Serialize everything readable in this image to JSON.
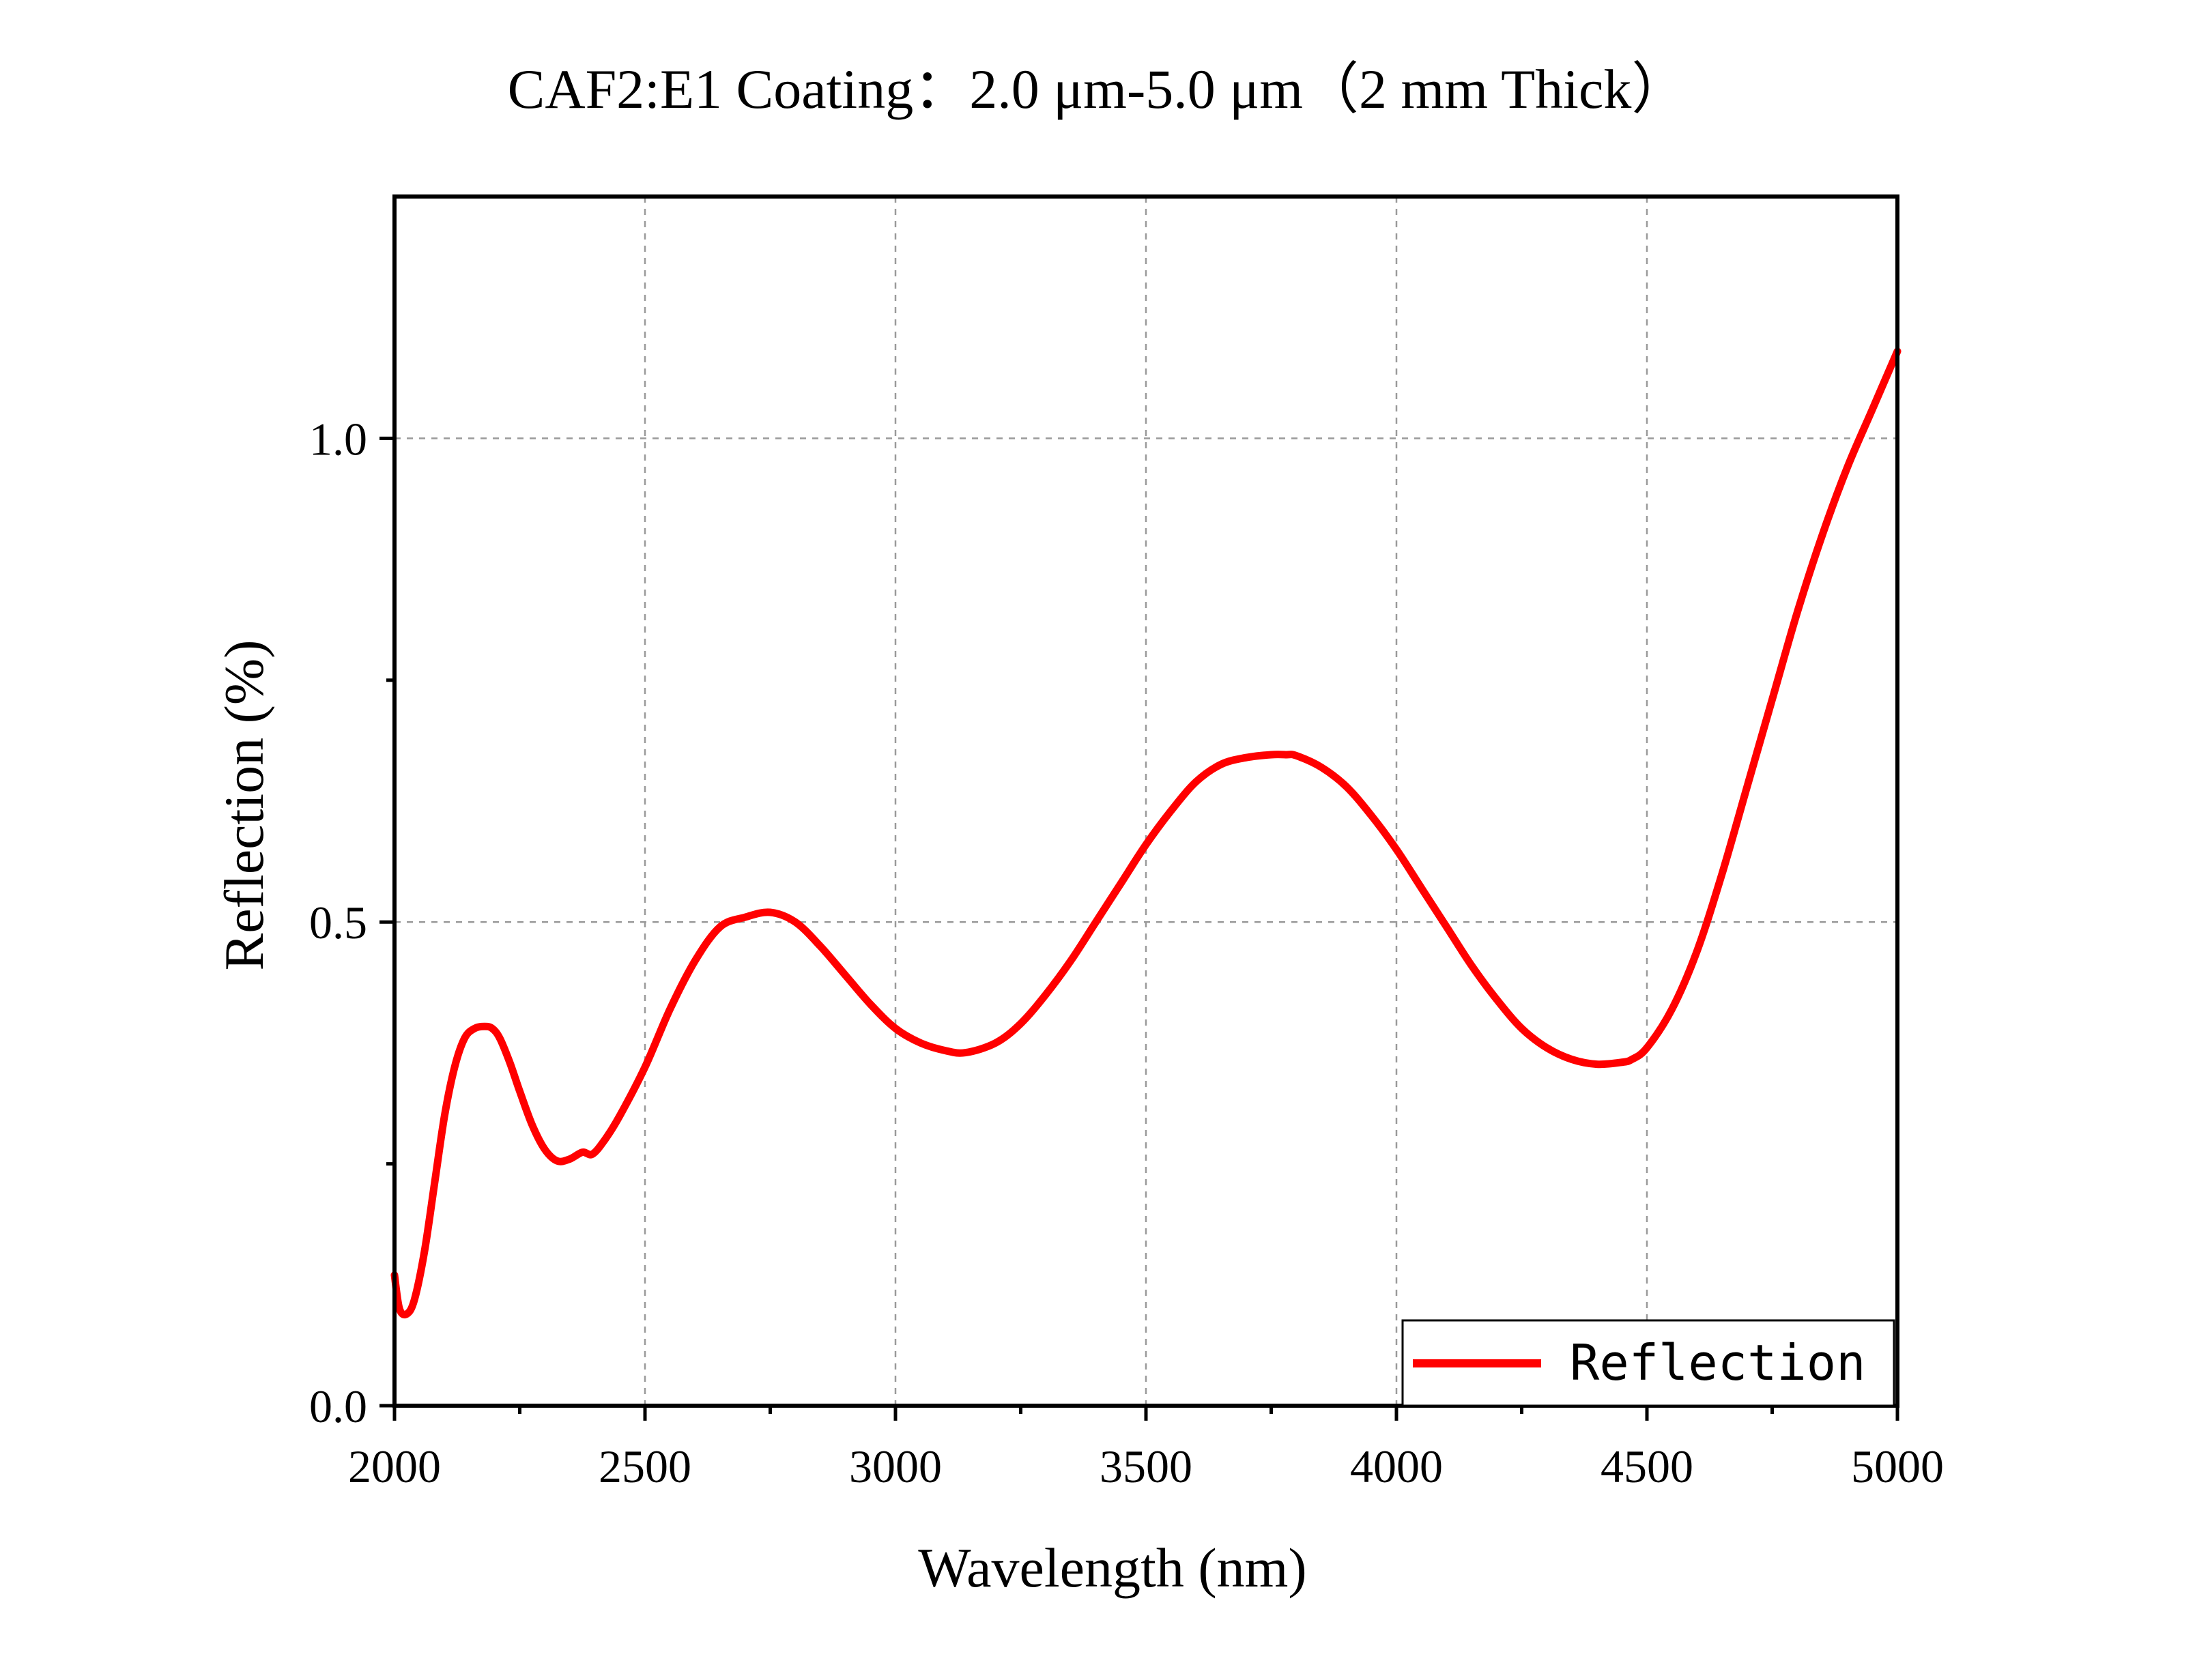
{
  "chart_data": {
    "type": "line",
    "title": "CAF2:E1 Coating：2.0 μm-5.0 μm（2 mm Thick）",
    "xlabel": "Wavelength (nm)",
    "ylabel": "Reflection (%)",
    "xlim": [
      2000,
      5000
    ],
    "ylim": [
      0.0,
      1.25
    ],
    "x_ticks": [
      2000,
      2500,
      3000,
      3500,
      4000,
      4500,
      5000
    ],
    "x_tick_labels": [
      "2000",
      "2500",
      "3000",
      "3500",
      "4000",
      "4500",
      "5000"
    ],
    "x_minor_ticks": [
      2250,
      2750,
      3250,
      3750,
      4250,
      4750
    ],
    "y_ticks": [
      0.0,
      0.5,
      1.0
    ],
    "y_tick_labels": [
      "0.0",
      "0.5",
      "1.0"
    ],
    "y_minor_ticks": [
      0.25,
      0.75
    ],
    "grid": true,
    "legend_position": "bottom-right",
    "series": [
      {
        "name": "Reflection",
        "color": "#ff0000",
        "x": [
          2000,
          2010,
          2025,
          2040,
          2060,
          2080,
          2100,
          2120,
          2140,
          2160,
          2180,
          2195,
          2210,
          2230,
          2250,
          2275,
          2300,
          2325,
          2350,
          2375,
          2395,
          2420,
          2450,
          2500,
          2550,
          2600,
          2650,
          2700,
          2750,
          2800,
          2850,
          2900,
          2950,
          3000,
          3050,
          3100,
          3140,
          3200,
          3250,
          3300,
          3350,
          3400,
          3450,
          3500,
          3550,
          3600,
          3650,
          3700,
          3750,
          3780,
          3800,
          3850,
          3900,
          3950,
          4000,
          4050,
          4100,
          4150,
          4200,
          4250,
          4300,
          4350,
          4400,
          4450,
          4470,
          4500,
          4550,
          4600,
          4650,
          4700,
          4750,
          4800,
          4850,
          4900,
          4950,
          5000
        ],
        "values": [
          0.135,
          0.1,
          0.095,
          0.11,
          0.16,
          0.23,
          0.3,
          0.35,
          0.38,
          0.39,
          0.392,
          0.39,
          0.38,
          0.355,
          0.325,
          0.29,
          0.265,
          0.253,
          0.255,
          0.262,
          0.26,
          0.275,
          0.3,
          0.35,
          0.41,
          0.46,
          0.495,
          0.505,
          0.51,
          0.5,
          0.475,
          0.445,
          0.415,
          0.39,
          0.375,
          0.367,
          0.365,
          0.375,
          0.395,
          0.425,
          0.46,
          0.5,
          0.54,
          0.58,
          0.615,
          0.645,
          0.663,
          0.67,
          0.673,
          0.673,
          0.672,
          0.66,
          0.64,
          0.61,
          0.575,
          0.535,
          0.495,
          0.455,
          0.42,
          0.39,
          0.37,
          0.358,
          0.353,
          0.355,
          0.358,
          0.37,
          0.41,
          0.47,
          0.55,
          0.64,
          0.73,
          0.82,
          0.9,
          0.97,
          1.03,
          1.09
        ]
      }
    ]
  }
}
